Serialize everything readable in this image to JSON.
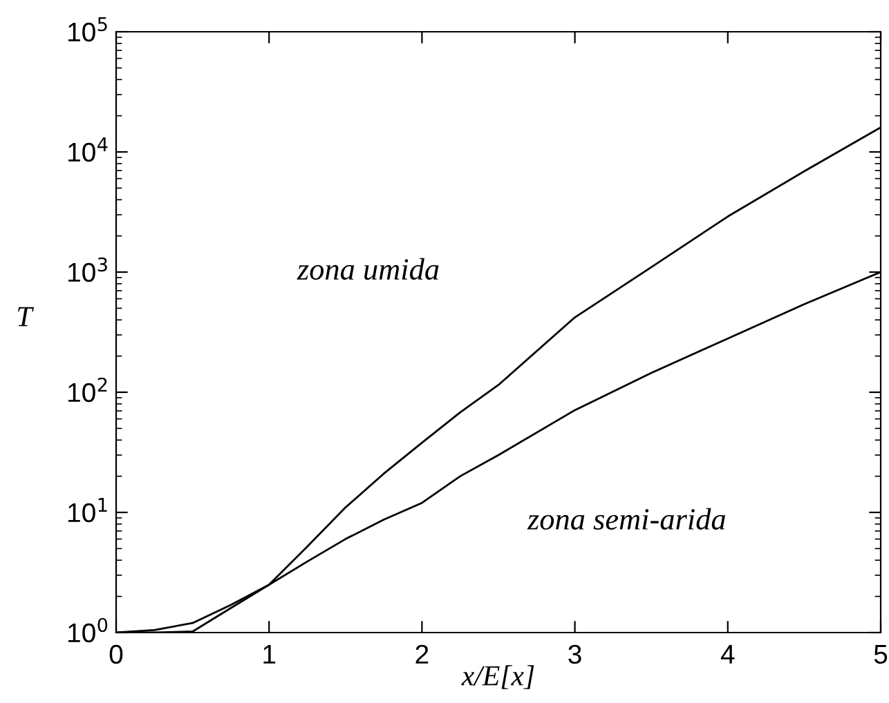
{
  "chart_data": {
    "type": "line",
    "xlabel": "x/E[x]",
    "ylabel": "T",
    "log": "y",
    "grid": false,
    "legend": false,
    "marker": "none",
    "line_style": "solid",
    "x": [
      0,
      0.25,
      0.5,
      0.75,
      1,
      1.25,
      1.5,
      1.75,
      2,
      2.25,
      2.5,
      3,
      3.5,
      4,
      4.5,
      5
    ],
    "series": [
      {
        "color": "#000000",
        "values": [
          1,
          1,
          1.02,
          1.6,
          2.5,
          5.2,
          11,
          21,
          38,
          68,
          115,
          420,
          1100,
          2900,
          6900,
          16000
        ]
      },
      {
        "color": "#000000",
        "values": [
          1,
          1.05,
          1.2,
          1.7,
          2.5,
          3.9,
          6,
          8.7,
          12,
          20,
          30,
          71,
          145,
          280,
          540,
          1000
        ]
      }
    ],
    "xlim": [
      0,
      5
    ],
    "xticks": [
      0,
      1,
      2,
      3,
      4,
      5
    ],
    "ylim": [
      1,
      100000
    ],
    "yticks": [
      {
        "value": 1,
        "label": "10$^{0}$"
      },
      {
        "value": 10,
        "label": "10$^{1}$"
      },
      {
        "value": 100,
        "label": "10$^{2}$"
      },
      {
        "value": 1000,
        "label": "10$^{3}$"
      },
      {
        "value": 10000,
        "label": "10$^{4}$"
      },
      {
        "value": 100000,
        "label": "10$^{5}$"
      }
    ],
    "annotations": [
      "zona umida",
      "zona semi-arida"
    ]
  }
}
